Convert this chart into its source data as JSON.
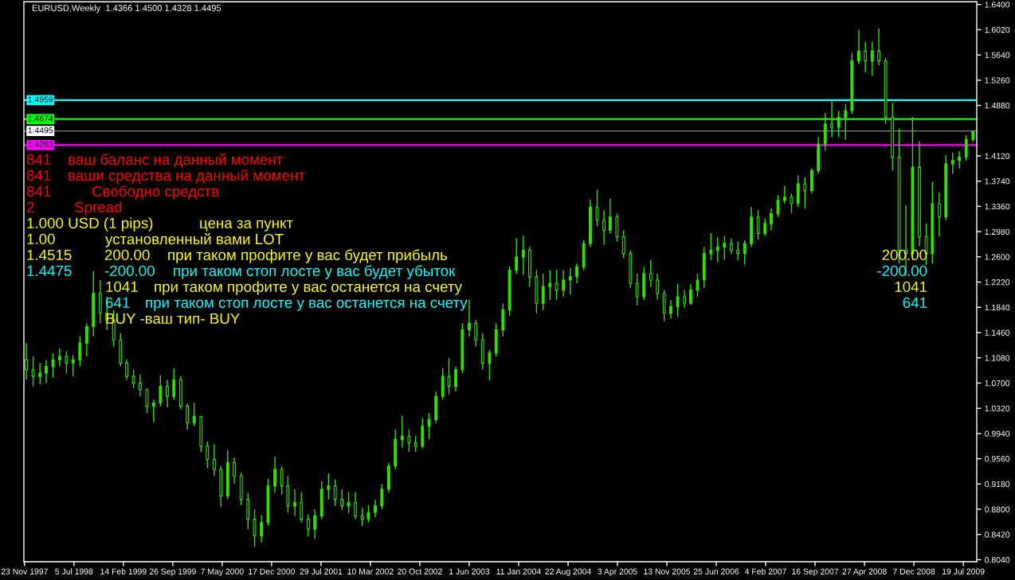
{
  "chart_data": {
    "type": "candlestick",
    "title": "EURUSD,Weekly  1.4366 1.4500 1.4328 1.4495",
    "color": "#32e000",
    "x": [
      "1997-12",
      "1998-01",
      "1998-02",
      "1998-03",
      "1998-04",
      "1998-05",
      "1998-06",
      "1998-07",
      "1998-08",
      "1998-09",
      "1998-10",
      "1998-11",
      "1998-12",
      "1999-01",
      "1999-02",
      "1999-03",
      "1999-04",
      "1999-05",
      "1999-06",
      "1999-07",
      "1999-08",
      "1999-09",
      "1999-10",
      "1999-11",
      "1999-12",
      "2000-01",
      "2000-02",
      "2000-03",
      "2000-04",
      "2000-05",
      "2000-06",
      "2000-07",
      "2000-08",
      "2000-09",
      "2000-10",
      "2000-11",
      "2000-12",
      "2001-01",
      "2001-02",
      "2001-03",
      "2001-04",
      "2001-05",
      "2001-06",
      "2001-07",
      "2001-08",
      "2001-09",
      "2001-10",
      "2001-11",
      "2001-12",
      "2002-01",
      "2002-02",
      "2002-03",
      "2002-04",
      "2002-05",
      "2002-06",
      "2002-07",
      "2002-08",
      "2002-09",
      "2002-10",
      "2002-11",
      "2002-12",
      "2003-01",
      "2003-02",
      "2003-03",
      "2003-04",
      "2003-05",
      "2003-06",
      "2003-07",
      "2003-08",
      "2003-09",
      "2003-10",
      "2003-11",
      "2003-12",
      "2004-01",
      "2004-02",
      "2004-03",
      "2004-04",
      "2004-05",
      "2004-06",
      "2004-07",
      "2004-08",
      "2004-09",
      "2004-10",
      "2004-11",
      "2004-12",
      "2005-01",
      "2005-02",
      "2005-03",
      "2005-04",
      "2005-05",
      "2005-06",
      "2005-07",
      "2005-08",
      "2005-09",
      "2005-10",
      "2005-11",
      "2005-12",
      "2006-01",
      "2006-02",
      "2006-03",
      "2006-04",
      "2006-05",
      "2006-06",
      "2006-07",
      "2006-08",
      "2006-09",
      "2006-10",
      "2006-11",
      "2006-12",
      "2007-01",
      "2007-02",
      "2007-03",
      "2007-04",
      "2007-05",
      "2007-06",
      "2007-07",
      "2007-08",
      "2007-09",
      "2007-10",
      "2007-11",
      "2007-12",
      "2008-01",
      "2008-02",
      "2008-03",
      "2008-04",
      "2008-05",
      "2008-06",
      "2008-07",
      "2008-08",
      "2008-09",
      "2008-10",
      "2008-11",
      "2008-12",
      "2009-01",
      "2009-02",
      "2009-03",
      "2009-04",
      "2009-05",
      "2009-06",
      "2009-07",
      "2009-08",
      "2009-09"
    ],
    "ohlc": [
      [
        1.105,
        1.13,
        1.075,
        1.09
      ],
      [
        1.09,
        1.11,
        1.065,
        1.08
      ],
      [
        1.08,
        1.1,
        1.068,
        1.085
      ],
      [
        1.085,
        1.105,
        1.07,
        1.095
      ],
      [
        1.095,
        1.115,
        1.078,
        1.105
      ],
      [
        1.105,
        1.122,
        1.095,
        1.11
      ],
      [
        1.11,
        1.118,
        1.085,
        1.1
      ],
      [
        1.1,
        1.112,
        1.08,
        1.105
      ],
      [
        1.105,
        1.14,
        1.095,
        1.13
      ],
      [
        1.13,
        1.16,
        1.11,
        1.155
      ],
      [
        1.155,
        1.239,
        1.14,
        1.205
      ],
      [
        1.205,
        1.225,
        1.16,
        1.175
      ],
      [
        1.175,
        1.2,
        1.15,
        1.165
      ],
      [
        1.165,
        1.18,
        1.125,
        1.135
      ],
      [
        1.135,
        1.145,
        1.095,
        1.1
      ],
      [
        1.1,
        1.106,
        1.075,
        1.08
      ],
      [
        1.08,
        1.09,
        1.062,
        1.07
      ],
      [
        1.07,
        1.083,
        1.05,
        1.06
      ],
      [
        1.06,
        1.062,
        1.025,
        1.035
      ],
      [
        1.035,
        1.045,
        1.011,
        1.04
      ],
      [
        1.04,
        1.082,
        1.035,
        1.065
      ],
      [
        1.065,
        1.075,
        1.033,
        1.05
      ],
      [
        1.05,
        1.092,
        1.045,
        1.075
      ],
      [
        1.075,
        1.08,
        1.03,
        1.035
      ],
      [
        1.035,
        1.04,
        1.0,
        1.01
      ],
      [
        1.01,
        1.04,
        1.005,
        1.02
      ],
      [
        1.02,
        1.02,
        0.966,
        0.975
      ],
      [
        0.975,
        0.982,
        0.942,
        0.955
      ],
      [
        0.955,
        0.978,
        0.93,
        0.94
      ],
      [
        0.94,
        0.945,
        0.883,
        0.9
      ],
      [
        0.9,
        0.969,
        0.895,
        0.95
      ],
      [
        0.95,
        0.958,
        0.918,
        0.93
      ],
      [
        0.93,
        0.935,
        0.886,
        0.895
      ],
      [
        0.895,
        0.905,
        0.85,
        0.865
      ],
      [
        0.865,
        0.88,
        0.823,
        0.84
      ],
      [
        0.84,
        0.871,
        0.83,
        0.86
      ],
      [
        0.86,
        0.926,
        0.855,
        0.915
      ],
      [
        0.915,
        0.959,
        0.905,
        0.94
      ],
      [
        0.94,
        0.945,
        0.902,
        0.915
      ],
      [
        0.915,
        0.93,
        0.875,
        0.885
      ],
      [
        0.885,
        0.91,
        0.87,
        0.89
      ],
      [
        0.89,
        0.906,
        0.86,
        0.865
      ],
      [
        0.865,
        0.872,
        0.839,
        0.85
      ],
      [
        0.85,
        0.88,
        0.835,
        0.87
      ],
      [
        0.87,
        0.922,
        0.865,
        0.91
      ],
      [
        0.91,
        0.934,
        0.895,
        0.915
      ],
      [
        0.915,
        0.925,
        0.885,
        0.895
      ],
      [
        0.895,
        0.91,
        0.879,
        0.885
      ],
      [
        0.885,
        0.906,
        0.874,
        0.89
      ],
      [
        0.89,
        0.906,
        0.865,
        0.87
      ],
      [
        0.87,
        0.882,
        0.855,
        0.865
      ],
      [
        0.865,
        0.886,
        0.86,
        0.875
      ],
      [
        0.875,
        0.894,
        0.868,
        0.885
      ],
      [
        0.885,
        0.918,
        0.88,
        0.91
      ],
      [
        0.91,
        0.95,
        0.905,
        0.945
      ],
      [
        0.945,
        1.0,
        0.94,
        0.985
      ],
      [
        0.985,
        1.021,
        0.973,
        0.99
      ],
      [
        0.99,
        1.0,
        0.966,
        0.98
      ],
      [
        0.98,
        0.991,
        0.966,
        0.975
      ],
      [
        0.975,
        1.017,
        0.972,
        1.005
      ],
      [
        1.005,
        1.025,
        0.985,
        1.015
      ],
      [
        1.015,
        1.057,
        1.01,
        1.05
      ],
      [
        1.05,
        1.092,
        1.045,
        1.08
      ],
      [
        1.08,
        1.108,
        1.053,
        1.065
      ],
      [
        1.065,
        1.095,
        1.057,
        1.09
      ],
      [
        1.09,
        1.16,
        1.085,
        1.15
      ],
      [
        1.15,
        1.195,
        1.14,
        1.16
      ],
      [
        1.16,
        1.165,
        1.125,
        1.135
      ],
      [
        1.135,
        1.145,
        1.09,
        1.1
      ],
      [
        1.1,
        1.12,
        1.074,
        1.115
      ],
      [
        1.115,
        1.16,
        1.11,
        1.15
      ],
      [
        1.15,
        1.19,
        1.14,
        1.18
      ],
      [
        1.18,
        1.246,
        1.171,
        1.24
      ],
      [
        1.24,
        1.288,
        1.234,
        1.26
      ],
      [
        1.26,
        1.292,
        1.233,
        1.27
      ],
      [
        1.27,
        1.275,
        1.215,
        1.23
      ],
      [
        1.23,
        1.24,
        1.175,
        1.19
      ],
      [
        1.19,
        1.235,
        1.18,
        1.215
      ],
      [
        1.215,
        1.24,
        1.195,
        1.22
      ],
      [
        1.22,
        1.24,
        1.195,
        1.21
      ],
      [
        1.21,
        1.24,
        1.2,
        1.225
      ],
      [
        1.225,
        1.243,
        1.203,
        1.23
      ],
      [
        1.23,
        1.25,
        1.22,
        1.245
      ],
      [
        1.245,
        1.285,
        1.24,
        1.28
      ],
      [
        1.28,
        1.346,
        1.275,
        1.335
      ],
      [
        1.335,
        1.361,
        1.306,
        1.315
      ],
      [
        1.315,
        1.33,
        1.278,
        1.3
      ],
      [
        1.3,
        1.348,
        1.295,
        1.32
      ],
      [
        1.32,
        1.325,
        1.283,
        1.29
      ],
      [
        1.29,
        1.3,
        1.258,
        1.265
      ],
      [
        1.265,
        1.27,
        1.213,
        1.22
      ],
      [
        1.22,
        1.235,
        1.187,
        1.2
      ],
      [
        1.2,
        1.245,
        1.195,
        1.235
      ],
      [
        1.235,
        1.256,
        1.215,
        1.225
      ],
      [
        1.225,
        1.235,
        1.195,
        1.205
      ],
      [
        1.205,
        1.21,
        1.163,
        1.175
      ],
      [
        1.175,
        1.195,
        1.167,
        1.185
      ],
      [
        1.185,
        1.219,
        1.17,
        1.2
      ],
      [
        1.2,
        1.21,
        1.183,
        1.19
      ],
      [
        1.19,
        1.219,
        1.188,
        1.21
      ],
      [
        1.21,
        1.235,
        1.2,
        1.225
      ],
      [
        1.225,
        1.275,
        1.213,
        1.265
      ],
      [
        1.265,
        1.296,
        1.255,
        1.27
      ],
      [
        1.27,
        1.29,
        1.252,
        1.275
      ],
      [
        1.275,
        1.292,
        1.255,
        1.28
      ],
      [
        1.28,
        1.288,
        1.264,
        1.27
      ],
      [
        1.27,
        1.283,
        1.255,
        1.265
      ],
      [
        1.265,
        1.285,
        1.248,
        1.28
      ],
      [
        1.28,
        1.335,
        1.275,
        1.32
      ],
      [
        1.32,
        1.33,
        1.286,
        1.295
      ],
      [
        1.295,
        1.318,
        1.291,
        1.31
      ],
      [
        1.31,
        1.333,
        1.3,
        1.325
      ],
      [
        1.325,
        1.353,
        1.32,
        1.345
      ],
      [
        1.345,
        1.367,
        1.34,
        1.35
      ],
      [
        1.35,
        1.355,
        1.326,
        1.34
      ],
      [
        1.34,
        1.383,
        1.335,
        1.37
      ],
      [
        1.37,
        1.38,
        1.333,
        1.36
      ],
      [
        1.36,
        1.393,
        1.355,
        1.39
      ],
      [
        1.39,
        1.441,
        1.385,
        1.43
      ],
      [
        1.43,
        1.477,
        1.42,
        1.46
      ],
      [
        1.46,
        1.494,
        1.44,
        1.455
      ],
      [
        1.455,
        1.48,
        1.44,
        1.47
      ],
      [
        1.47,
        1.49,
        1.436,
        1.48
      ],
      [
        1.48,
        1.567,
        1.475,
        1.555
      ],
      [
        1.555,
        1.602,
        1.55,
        1.57
      ],
      [
        1.57,
        1.584,
        1.538,
        1.555
      ],
      [
        1.555,
        1.584,
        1.533,
        1.57
      ],
      [
        1.57,
        1.604,
        1.548,
        1.555
      ],
      [
        1.555,
        1.56,
        1.46,
        1.47
      ],
      [
        1.47,
        1.492,
        1.39,
        1.41
      ],
      [
        1.41,
        1.453,
        1.25,
        1.27
      ],
      [
        1.27,
        1.338,
        1.231,
        1.265
      ],
      [
        1.265,
        1.471,
        1.255,
        1.395
      ],
      [
        1.395,
        1.434,
        1.276,
        1.29
      ],
      [
        1.29,
        1.31,
        1.248,
        1.265
      ],
      [
        1.265,
        1.373,
        1.25,
        1.34
      ],
      [
        1.34,
        1.357,
        1.291,
        1.32
      ],
      [
        1.32,
        1.413,
        1.315,
        1.4
      ],
      [
        1.4,
        1.417,
        1.385,
        1.405
      ],
      [
        1.405,
        1.419,
        1.393,
        1.41
      ],
      [
        1.41,
        1.443,
        1.405,
        1.4366
      ],
      [
        1.4366,
        1.45,
        1.4328,
        1.4495
      ]
    ],
    "xlim": [
      "1997-11-20",
      "2009-09-18"
    ],
    "xticks": [
      {
        "value": "1997-11-23",
        "label": "23 Nov 1997"
      },
      {
        "value": "1998-07-05",
        "label": "5 Jul 1998"
      },
      {
        "value": "1999-02-14",
        "label": "14 Feb 1999"
      },
      {
        "value": "1999-09-26",
        "label": "26 Sep 1999"
      },
      {
        "value": "2000-05-07",
        "label": "7 May 2000"
      },
      {
        "value": "2000-12-17",
        "label": "17 Dec 2000"
      },
      {
        "value": "2001-07-29",
        "label": "29 Jul 2001"
      },
      {
        "value": "2002-03-10",
        "label": "10 Mar 2002"
      },
      {
        "value": "2002-10-20",
        "label": "20 Oct 2002"
      },
      {
        "value": "2003-06-01",
        "label": "1 Jun 2003"
      },
      {
        "value": "2004-01-11",
        "label": "11 Jan 2004"
      },
      {
        "value": "2004-08-22",
        "label": "22 Aug 2004"
      },
      {
        "value": "2005-04-03",
        "label": "3 Apr 2005"
      },
      {
        "value": "2005-11-13",
        "label": "13 Nov 2005"
      },
      {
        "value": "2006-06-25",
        "label": "25 Jun 2006"
      },
      {
        "value": "2007-02-04",
        "label": "4 Feb 2007"
      },
      {
        "value": "2007-09-16",
        "label": "16 Sep 2007"
      },
      {
        "value": "2008-04-27",
        "label": "27 Apr 2008"
      },
      {
        "value": "2008-12-07",
        "label": "7 Dec 2008"
      },
      {
        "value": "2009-07-19",
        "label": "19 Jul 2009"
      }
    ],
    "ylim": [
      0.801,
      1.644
    ],
    "yticks": [
      {
        "value": 0.804,
        "label": "0.8040"
      },
      {
        "value": 0.842,
        "label": "0.8420"
      },
      {
        "value": 0.88,
        "label": "0.8800"
      },
      {
        "value": 0.918,
        "label": "0.9180"
      },
      {
        "value": 0.956,
        "label": "0.9560"
      },
      {
        "value": 0.994,
        "label": "0.9940"
      },
      {
        "value": 1.032,
        "label": "1.0320"
      },
      {
        "value": 1.07,
        "label": "1.0700"
      },
      {
        "value": 1.108,
        "label": "1.1080"
      },
      {
        "value": 1.146,
        "label": "1.1460"
      },
      {
        "value": 1.184,
        "label": "1.1840"
      },
      {
        "value": 1.222,
        "label": "1.2220"
      },
      {
        "value": 1.26,
        "label": "1.2600"
      },
      {
        "value": 1.298,
        "label": "1.2980"
      },
      {
        "value": 1.336,
        "label": "1.3360"
      },
      {
        "value": 1.374,
        "label": "1.3740"
      },
      {
        "value": 1.412,
        "label": "1.4120"
      },
      {
        "value": 1.488,
        "label": "1.4880"
      },
      {
        "value": 1.526,
        "label": "1.5260"
      },
      {
        "value": 1.564,
        "label": "1.5640"
      },
      {
        "value": 1.602,
        "label": "1.6020"
      },
      {
        "value": 1.64,
        "label": "1.6400"
      }
    ],
    "ref_lines": [
      {
        "axis": "y",
        "value": 1.4959,
        "label": "1.4959",
        "color": "#00ffff"
      },
      {
        "axis": "y",
        "value": 1.4674,
        "label": "1.4674",
        "color": "#00ff00"
      },
      {
        "axis": "y",
        "value": 1.4495,
        "label": "1.4495",
        "color": "#778899"
      },
      {
        "axis": "y",
        "value": 1.4283,
        "label": "1.4283",
        "color": "#ff00ff"
      }
    ],
    "annotations": [
      "841",
      "ваш баланс на данный момент",
      "841",
      "ваши средства на данный момент",
      "841",
      "Свободно средств",
      "2",
      "Spread",
      "1.000 USD (1 pips)",
      "цена за пункт",
      "1.00",
      "установленный вами LOT",
      "1.4515",
      "200.00",
      "при таком профите у вас будет прибыль",
      "200.00",
      "1.4475",
      "-200.00",
      "при таком стоп лосте у вас будет убыток",
      "-200.00",
      "1041",
      "при таком профите у вас останется на счету",
      "1041",
      "641",
      "при таком стоп лосте у вас останется на счету",
      "641",
      "BUY -ваш тип- BUY"
    ]
  }
}
